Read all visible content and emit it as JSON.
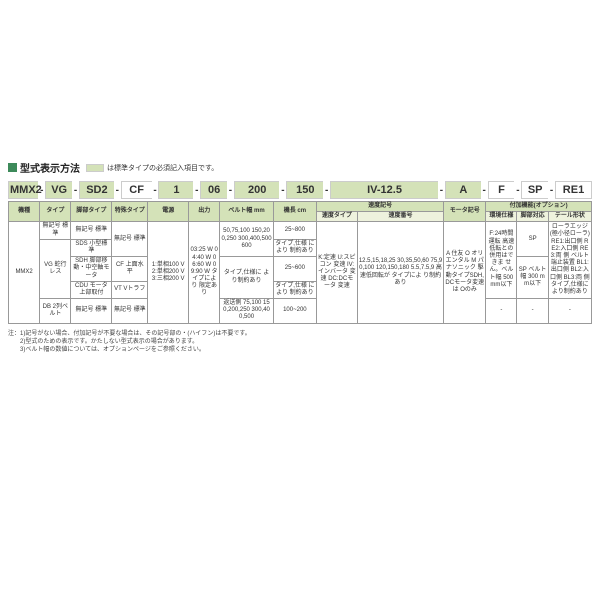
{
  "header": {
    "title": "型式表示方法",
    "legend": "は標準タイプの必須記入項目です。"
  },
  "code": {
    "segs": [
      {
        "t": "MMX2",
        "hl": true,
        "w": "5.2%"
      },
      {
        "t": "VG",
        "hl": true,
        "w": "5.2%"
      },
      {
        "t": "SD2",
        "hl": true,
        "w": "6.8%"
      },
      {
        "t": "CF",
        "hl": false,
        "w": "6.0%"
      },
      {
        "t": "1",
        "hl": true,
        "w": "6.8%"
      },
      {
        "t": "06",
        "hl": true,
        "w": "5.2%"
      },
      {
        "t": "200",
        "hl": true,
        "w": "8.9%"
      },
      {
        "t": "150",
        "hl": true,
        "w": "7.2%"
      },
      {
        "t": "IV-12.5",
        "hl": true,
        "w": "21.2%"
      },
      {
        "t": "A",
        "hl": true,
        "w": "7.0%"
      },
      {
        "t": "F",
        "hl": false,
        "w": "5.2%"
      },
      {
        "t": "SP",
        "hl": false,
        "w": "5.2%"
      },
      {
        "t": "RE1",
        "hl": false,
        "w": "7.2%"
      }
    ]
  },
  "table": {
    "h1": [
      "機種",
      "タイプ",
      "脚部タイプ",
      "特殊タイプ",
      "電源",
      "出力",
      "ベルト幅\nmm",
      "機長\ncm",
      "速度記号",
      "",
      "",
      "モータ記号",
      "付加機能(オプション)",
      "",
      ""
    ],
    "h2_speed": [
      "速度タイプ",
      "速度番号"
    ],
    "h2_opt": [
      "環境仕様",
      "脚部対応",
      "テール形状"
    ],
    "r1": {
      "c1": "MMX2",
      "c2a": "無記号\n標準",
      "c2b": "VG\n蛇行レス",
      "c2c": "DB\n2列ベルト",
      "c3a": "無記号\n標準",
      "c3b": "SDS\n小型標準",
      "c3c": "SDH\n脚部移動・中空軸モータ",
      "c3d": "CDU\nモータ上部取付",
      "c3e": "無記号\n標準",
      "c4a": "無記号\n標準",
      "c4b": "CF\n上面水平",
      "c4c": "VT\nVトラフ",
      "c4d": "無記号\n標準",
      "c5": "1:単相100 V\n\n2:単相200 V\n\n3:三相200 V",
      "c6": "03:25 W\n\n04:40 W\n\n06:60 W\n\n09:90 W\n\nタイプにより\n限定あり",
      "c7a": "50,75,100\n150,200,250\n300,400,500\n600",
      "c7b": "タイプ,仕様に\nより制約あり",
      "c7c": "返送側\n75,100\n150,200,250\n300,400,500",
      "c8a": "25~800",
      "c8b": "タイプ,仕様\nにより\n制約あり",
      "c8c": "25~600",
      "c8d": "タイプ,仕様\nにより\n制約あり",
      "c8e": "100~200",
      "c9": "K:定速\n\nU:スピコン\n変速\n\nIV:インバータ\n変速\n\nDC:DCモータ\n変速",
      "c10": "12.5,15,18,25\n30,35,50,60\n75,90,100\n120,150,180\n\n5.5,7.5,9\n高速低回転が\nタイプによ\nり制約あり",
      "c11": "A\n住友\n\nO\nオリエンタル\n\nM\nパナソニック\n\n駆動タイプSDH,\nDCモータ変速は\nOのみ",
      "c12": "F:24時間運転\n高速低転との\n併用はできま\nせん。ベルト幅\n500 mm以下",
      "c12b": "-",
      "c13": "SP",
      "c13b": "SP\nベルト幅\n300 mm以下",
      "c13c": "-",
      "c14": "ローラエッジ\n(極小径ローラ)\nRE1:出口側\nRE2:入口側\nRE3:両 側\n\nベルト端止装置\nBL1:出口側\nBL2:入口側\nBL3:両 側\n\nタイプ,仕様に\nより制約あり",
      "c14b": "-"
    }
  },
  "notes": {
    "n0": "注：1)記号がない場合、付加記号が不要な場合は、その記号部の・(ハイフン)は不要です。",
    "n1": "　　2)型式のための表示です。かたしない型式表示の場合があります。",
    "n2": "　　3)ベルト幅の数値については、オプションページをご参照ください。"
  }
}
